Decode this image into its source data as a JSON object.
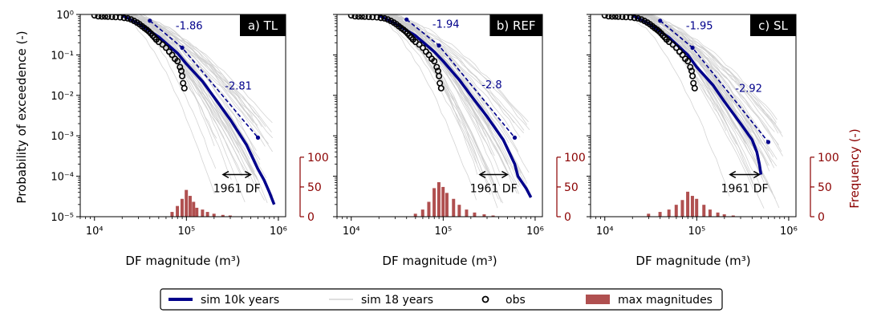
{
  "figure": {
    "ylabel": "Probability of exceedence (-)",
    "ylabel_right": "Frequency (-)",
    "legend": {
      "entries": [
        {
          "label": "sim 10k years",
          "kind": "thick-line",
          "color": "#00008b"
        },
        {
          "label": "sim 18 years",
          "kind": "thin-line",
          "color": "#cccccc"
        },
        {
          "label": "obs",
          "kind": "open-circle",
          "color": "#000000"
        },
        {
          "label": "max magnitudes",
          "kind": "patch",
          "color": "#b05050"
        }
      ]
    }
  },
  "chart_data": [
    {
      "type": "line",
      "panel_label": "a) TL",
      "xlabel": "DF magnitude (m³)",
      "ylabel": "Probability of exceedence (-)",
      "x_scale": "log",
      "y_scale": "log",
      "xlim": [
        7000,
        1200000
      ],
      "ylim": [
        1e-05,
        1
      ],
      "x_ticks": [
        {
          "v": 10000,
          "label": "10⁴"
        },
        {
          "v": 100000,
          "label": "10⁵"
        },
        {
          "v": 1000000,
          "label": "10⁶"
        }
      ],
      "y_ticks": [
        {
          "v": 1,
          "label": "10⁰"
        },
        {
          "v": 0.1,
          "label": "10⁻¹"
        },
        {
          "v": 0.01,
          "label": "10⁻²"
        },
        {
          "v": 0.001,
          "label": "10⁻³"
        },
        {
          "v": 0.0001,
          "label": "10⁻⁴"
        },
        {
          "v": 1e-05,
          "label": "10⁻⁵"
        }
      ],
      "sim_10k": {
        "x": [
          20000,
          30000,
          50000,
          80000,
          100000,
          150000,
          200000,
          300000,
          450000,
          600000,
          700000,
          800000,
          900000
        ],
        "y": [
          0.95,
          0.6,
          0.28,
          0.11,
          0.06,
          0.022,
          0.009,
          0.0025,
          0.0006,
          0.00015,
          8e-05,
          4e-05,
          2e-05
        ]
      },
      "fit": {
        "x": [
          40000,
          90000,
          600000
        ],
        "y": [
          0.7,
          0.15,
          0.0009
        ],
        "slopes": [
          "-1.86",
          "-2.81"
        ]
      },
      "obs": {
        "x": [
          10000,
          11000,
          12000,
          13000,
          14000,
          15500,
          17000,
          19000,
          21000,
          23000,
          25000,
          27000,
          29000,
          31000,
          33000,
          35000,
          37000,
          39000,
          41000,
          43000,
          45000,
          47000,
          50000,
          55000,
          60000,
          65000,
          70000,
          75000,
          80000,
          85000,
          88000,
          90000,
          92000,
          95000
        ],
        "y": [
          0.95,
          0.9,
          0.89,
          0.89,
          0.88,
          0.87,
          0.86,
          0.85,
          0.82,
          0.8,
          0.75,
          0.69,
          0.63,
          0.57,
          0.51,
          0.46,
          0.42,
          0.38,
          0.34,
          0.3,
          0.27,
          0.24,
          0.21,
          0.18,
          0.15,
          0.12,
          0.1,
          0.08,
          0.07,
          0.05,
          0.04,
          0.03,
          0.02,
          0.015
        ]
      },
      "hist": {
        "bins": [
          {
            "x": 70000,
            "v": 8
          },
          {
            "x": 80000,
            "v": 18
          },
          {
            "x": 90000,
            "v": 30
          },
          {
            "x": 100000,
            "v": 45
          },
          {
            "x": 110000,
            "v": 35
          },
          {
            "x": 120000,
            "v": 25
          },
          {
            "x": 130000,
            "v": 15
          },
          {
            "x": 150000,
            "v": 12
          },
          {
            "x": 170000,
            "v": 8
          },
          {
            "x": 200000,
            "v": 5
          },
          {
            "x": 250000,
            "v": 3
          },
          {
            "x": 300000,
            "v": 2
          }
        ]
      },
      "annotation": "1961 DF",
      "annotation_x": [
        250000,
        500000
      ],
      "annotation_y": 0.00011
    },
    {
      "type": "line",
      "panel_label": "b) REF",
      "xlabel": "DF magnitude (m³)",
      "ylabel": "",
      "x_scale": "log",
      "y_scale": "log",
      "xlim": [
        7000,
        1200000
      ],
      "ylim": [
        1e-05,
        1
      ],
      "x_ticks": [
        {
          "v": 10000,
          "label": "10⁴"
        },
        {
          "v": 100000,
          "label": "10⁵"
        },
        {
          "v": 1000000,
          "label": "10⁶"
        }
      ],
      "y_ticks": [
        {
          "v": 1,
          "label": "10⁰"
        },
        {
          "v": 0.1,
          "label": "10⁻¹"
        },
        {
          "v": 0.01,
          "label": "10⁻²"
        },
        {
          "v": 0.001,
          "label": "10⁻³"
        },
        {
          "v": 0.0001,
          "label": "10⁻⁴"
        },
        {
          "v": 1e-05,
          "label": "10⁻⁵"
        }
      ],
      "sim_10k": {
        "x": [
          20000,
          30000,
          50000,
          80000,
          100000,
          150000,
          200000,
          300000,
          450000,
          600000,
          650000,
          800000,
          900000
        ],
        "y": [
          0.95,
          0.6,
          0.3,
          0.12,
          0.07,
          0.024,
          0.01,
          0.003,
          0.0008,
          0.0002,
          0.0001,
          5e-05,
          3e-05
        ]
      },
      "fit": {
        "x": [
          40000,
          90000,
          600000
        ],
        "y": [
          0.75,
          0.17,
          0.0009
        ],
        "slopes": [
          "-1.94",
          "-2.8"
        ]
      },
      "obs": {
        "x": [
          10000,
          11000,
          12000,
          13000,
          14000,
          15500,
          17000,
          19000,
          21000,
          23000,
          25000,
          27000,
          29000,
          31000,
          33000,
          35000,
          37000,
          39000,
          41000,
          43000,
          45000,
          47000,
          50000,
          55000,
          60000,
          65000,
          70000,
          75000,
          80000,
          85000,
          88000,
          90000,
          92000,
          95000
        ],
        "y": [
          0.95,
          0.9,
          0.89,
          0.89,
          0.88,
          0.87,
          0.86,
          0.85,
          0.82,
          0.8,
          0.75,
          0.69,
          0.63,
          0.57,
          0.51,
          0.46,
          0.42,
          0.38,
          0.34,
          0.3,
          0.27,
          0.24,
          0.21,
          0.18,
          0.15,
          0.12,
          0.1,
          0.08,
          0.07,
          0.05,
          0.04,
          0.03,
          0.02,
          0.015
        ]
      },
      "hist": {
        "bins": [
          {
            "x": 50000,
            "v": 5
          },
          {
            "x": 60000,
            "v": 12
          },
          {
            "x": 70000,
            "v": 25
          },
          {
            "x": 80000,
            "v": 48
          },
          {
            "x": 90000,
            "v": 58
          },
          {
            "x": 100000,
            "v": 50
          },
          {
            "x": 110000,
            "v": 40
          },
          {
            "x": 130000,
            "v": 30
          },
          {
            "x": 150000,
            "v": 20
          },
          {
            "x": 180000,
            "v": 12
          },
          {
            "x": 220000,
            "v": 7
          },
          {
            "x": 280000,
            "v": 4
          },
          {
            "x": 350000,
            "v": 2
          }
        ]
      },
      "annotation": "1961 DF",
      "annotation_x": [
        250000,
        500000
      ],
      "annotation_y": 0.00011
    },
    {
      "type": "line",
      "panel_label": "c) SL",
      "xlabel": "DF magnitude (m³)",
      "ylabel": "",
      "x_scale": "log",
      "y_scale": "log",
      "xlim": [
        7000,
        1200000
      ],
      "ylim": [
        1e-05,
        1
      ],
      "x_ticks": [
        {
          "v": 10000,
          "label": "10⁴"
        },
        {
          "v": 100000,
          "label": "10⁵"
        },
        {
          "v": 1000000,
          "label": "10⁶"
        }
      ],
      "y_ticks": [
        {
          "v": 1,
          "label": "10⁰"
        },
        {
          "v": 0.1,
          "label": "10⁻¹"
        },
        {
          "v": 0.01,
          "label": "10⁻²"
        },
        {
          "v": 0.001,
          "label": "10⁻³"
        },
        {
          "v": 0.0001,
          "label": "10⁻⁴"
        },
        {
          "v": 1e-05,
          "label": "10⁻⁵"
        }
      ],
      "sim_10k": {
        "x": [
          20000,
          30000,
          50000,
          80000,
          100000,
          150000,
          200000,
          300000,
          400000,
          450000,
          480000,
          500000
        ],
        "y": [
          0.95,
          0.6,
          0.27,
          0.1,
          0.05,
          0.018,
          0.007,
          0.002,
          0.0008,
          0.0004,
          0.0002,
          0.00011
        ]
      },
      "fit": {
        "x": [
          40000,
          90000,
          600000
        ],
        "y": [
          0.7,
          0.15,
          0.0007
        ],
        "slopes": [
          "-1.95",
          "-2.92"
        ]
      },
      "obs": {
        "x": [
          10000,
          11000,
          12000,
          13000,
          14000,
          15500,
          17000,
          19000,
          21000,
          23000,
          25000,
          27000,
          29000,
          31000,
          33000,
          35000,
          37000,
          39000,
          41000,
          43000,
          45000,
          47000,
          50000,
          55000,
          60000,
          65000,
          70000,
          75000,
          80000,
          85000,
          88000,
          90000,
          92000,
          95000
        ],
        "y": [
          0.95,
          0.9,
          0.89,
          0.89,
          0.88,
          0.87,
          0.86,
          0.85,
          0.82,
          0.8,
          0.75,
          0.69,
          0.63,
          0.57,
          0.51,
          0.46,
          0.42,
          0.38,
          0.34,
          0.3,
          0.27,
          0.24,
          0.21,
          0.18,
          0.15,
          0.12,
          0.1,
          0.08,
          0.07,
          0.05,
          0.04,
          0.03,
          0.02,
          0.015
        ]
      },
      "hist": {
        "bins": [
          {
            "x": 30000,
            "v": 5
          },
          {
            "x": 40000,
            "v": 8
          },
          {
            "x": 50000,
            "v": 12
          },
          {
            "x": 60000,
            "v": 20
          },
          {
            "x": 70000,
            "v": 28
          },
          {
            "x": 80000,
            "v": 42
          },
          {
            "x": 90000,
            "v": 35
          },
          {
            "x": 100000,
            "v": 30
          },
          {
            "x": 120000,
            "v": 20
          },
          {
            "x": 140000,
            "v": 12
          },
          {
            "x": 170000,
            "v": 7
          },
          {
            "x": 200000,
            "v": 4
          },
          {
            "x": 250000,
            "v": 2
          }
        ]
      },
      "annotation": "1961 DF",
      "annotation_x": [
        230000,
        480000
      ],
      "annotation_y": 0.00011
    }
  ],
  "histogram_axis": {
    "ticks": [
      {
        "v": 0,
        "label": "0"
      },
      {
        "v": 50,
        "label": "50"
      },
      {
        "v": 100,
        "label": "100"
      }
    ],
    "ylim": [
      0,
      340
    ]
  },
  "colors": {
    "sim10k": "#00008b",
    "fit": "#00008b",
    "sim18": "#cccccc",
    "obs": "#000000",
    "hist": "#b05050",
    "right_axis": "#8b0000",
    "slope_text": "#00008b"
  }
}
